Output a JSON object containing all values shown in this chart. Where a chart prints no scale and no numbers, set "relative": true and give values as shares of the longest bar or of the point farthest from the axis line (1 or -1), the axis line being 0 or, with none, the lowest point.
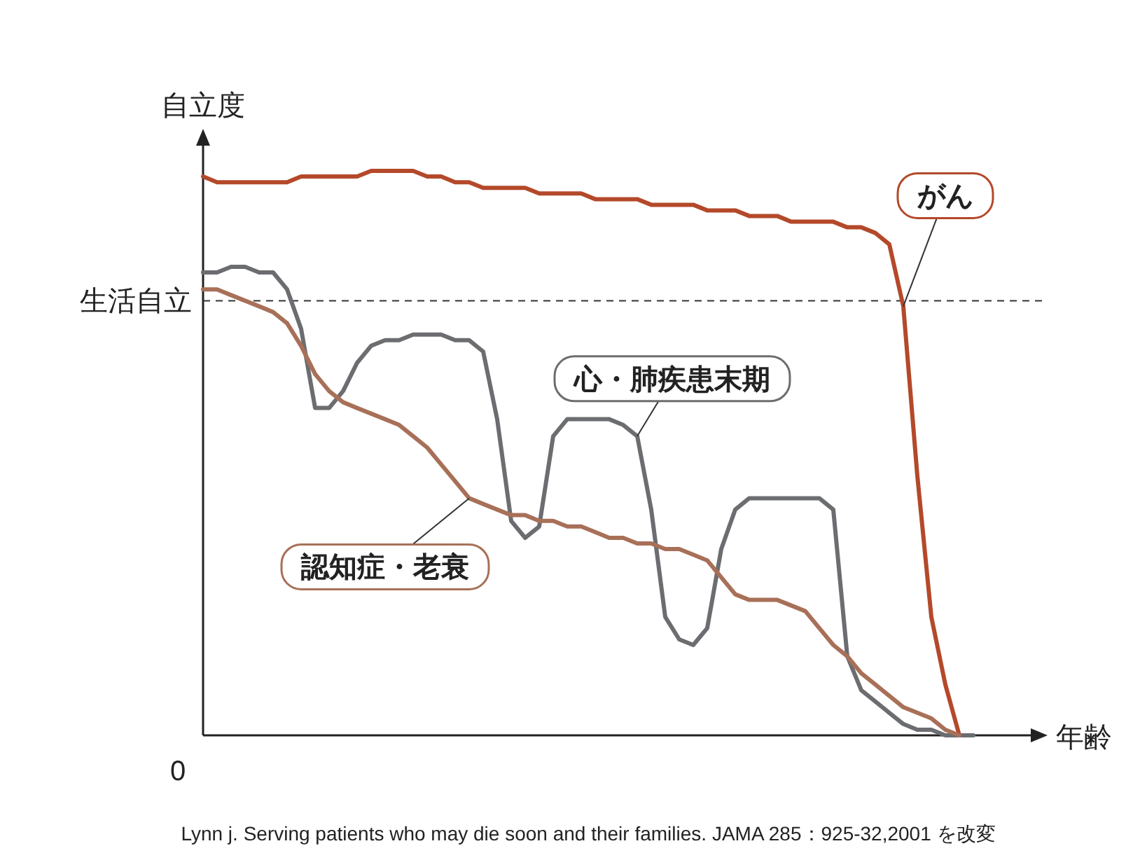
{
  "chart_data": {
    "type": "line",
    "relative": true,
    "ylabel": "自立度",
    "xlabel": "年齢",
    "categories": [
      null,
      null,
      null,
      null,
      null,
      null,
      null,
      null,
      null,
      null,
      null,
      null,
      null,
      null,
      null,
      null,
      null,
      null,
      null,
      null,
      null,
      null,
      null,
      null,
      null,
      null,
      null,
      null,
      null,
      null,
      null,
      null,
      null,
      null,
      null,
      null,
      null,
      null,
      null,
      null,
      null,
      null,
      null,
      null,
      null,
      null,
      null,
      null,
      null,
      null,
      null,
      null,
      null,
      null,
      null,
      null
    ],
    "series": [
      {
        "name": "がん",
        "color": "#b4492a",
        "values": [
          0.99,
          0.98,
          0.98,
          0.98,
          0.98,
          0.98,
          0.98,
          0.99,
          0.99,
          0.99,
          0.99,
          0.99,
          1.0,
          1.0,
          1.0,
          1.0,
          0.99,
          0.99,
          0.98,
          0.98,
          0.97,
          0.97,
          0.97,
          0.97,
          0.96,
          0.96,
          0.96,
          0.96,
          0.95,
          0.95,
          0.95,
          0.95,
          0.94,
          0.94,
          0.94,
          0.94,
          0.93,
          0.93,
          0.93,
          0.92,
          0.92,
          0.92,
          0.91,
          0.91,
          0.91,
          0.91,
          0.9,
          0.9,
          0.89,
          0.87,
          0.76,
          0.46,
          0.21,
          0.09,
          0,
          null
        ]
      },
      {
        "name": "心・肺疾患末期",
        "color": "#6b6d70",
        "values": [
          0.82,
          0.82,
          0.83,
          0.83,
          0.82,
          0.82,
          0.79,
          0.72,
          0.58,
          0.58,
          0.61,
          0.66,
          0.69,
          0.7,
          0.7,
          0.71,
          0.71,
          0.71,
          0.7,
          0.7,
          0.68,
          0.56,
          0.38,
          0.35,
          0.37,
          0.53,
          0.56,
          0.56,
          0.56,
          0.56,
          0.55,
          0.53,
          0.4,
          0.21,
          0.17,
          0.16,
          0.19,
          0.33,
          0.4,
          0.42,
          0.42,
          0.42,
          0.42,
          0.42,
          0.42,
          0.4,
          0.14,
          0.08,
          0.06,
          0.04,
          0.02,
          0.01,
          0.01,
          0,
          0,
          0
        ]
      },
      {
        "name": "認知症・老衰",
        "color": "#a87058",
        "values": [
          0.79,
          0.79,
          0.78,
          0.77,
          0.76,
          0.75,
          0.73,
          0.69,
          0.64,
          0.61,
          0.59,
          0.58,
          0.57,
          0.56,
          0.55,
          0.53,
          0.51,
          0.48,
          0.45,
          0.42,
          0.41,
          0.4,
          0.39,
          0.39,
          0.38,
          0.38,
          0.37,
          0.37,
          0.36,
          0.35,
          0.35,
          0.34,
          0.34,
          0.33,
          0.33,
          0.32,
          0.31,
          0.28,
          0.25,
          0.24,
          0.24,
          0.24,
          0.23,
          0.22,
          0.19,
          0.16,
          0.14,
          0.11,
          0.09,
          0.07,
          0.05,
          0.04,
          0.03,
          0.01,
          0,
          null
        ]
      }
    ],
    "ref_lines": [
      {
        "axis": "y",
        "value": 0.77,
        "label": "生活自立",
        "line_style": "dashed",
        "color": "#333333"
      }
    ],
    "annotations": [
      "0",
      "Lynn j. Serving patients who may die soon and their families.  JAMA 285：925-32,2001 を改変"
    ]
  }
}
